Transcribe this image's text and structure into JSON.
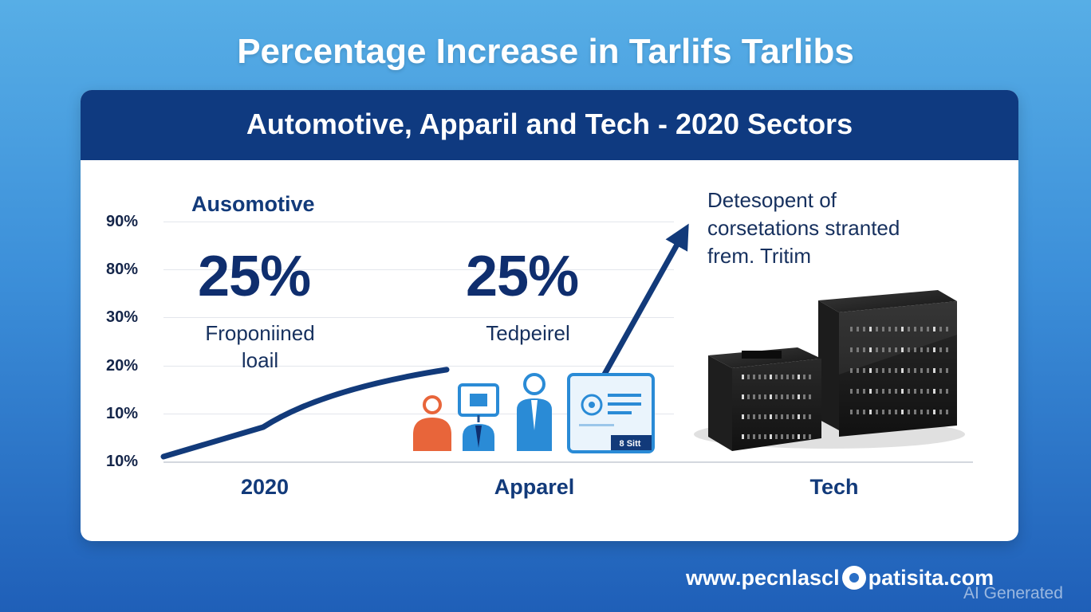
{
  "title": "Percentage Increase in Tarlifs Tarlibs",
  "subtitle": "Automotive, Apparil and Tech - 2020 Sectors",
  "sections": [
    {
      "label": "Ausomotive",
      "value": "25%",
      "caption_line1": "Froponiined",
      "caption_line2": "loail"
    },
    {
      "value": "25%",
      "caption_line1": "Tedpeirel",
      "caption_line2": ""
    }
  ],
  "note_lines": [
    "Detesopent of",
    "corsetations stranted",
    "frem. Tritim"
  ],
  "footer": {
    "url_left": "www.pecnlascl",
    "url_right": "patisita.com",
    "watermark": "AI Generated"
  },
  "icons": [
    "person-icon",
    "monitor-person-icon",
    "standing-person-icon",
    "id-card-icon",
    "server-box-icon"
  ],
  "id_card_text": "8 Sitt",
  "colors": {
    "accent": "#0f3a80",
    "line": "#123a7a",
    "background_top": "#57aee6",
    "background_bottom": "#1f5fb8",
    "person_orange": "#e8653a",
    "icon_blue": "#2a8bd6"
  },
  "chart_data": {
    "type": "line",
    "y_tick_labels": [
      "90%",
      "80%",
      "30%",
      "20%",
      "10%",
      "10%"
    ],
    "categories": [
      "2020",
      "Apparel",
      "Tech"
    ],
    "series": [
      {
        "points": [
          {
            "x": "2020",
            "y": 10
          },
          {
            "x": "Apparel",
            "y": 41
          },
          {
            "x": "Tech",
            "y": 92
          }
        ]
      }
    ],
    "grid": true,
    "legend": "none"
  }
}
